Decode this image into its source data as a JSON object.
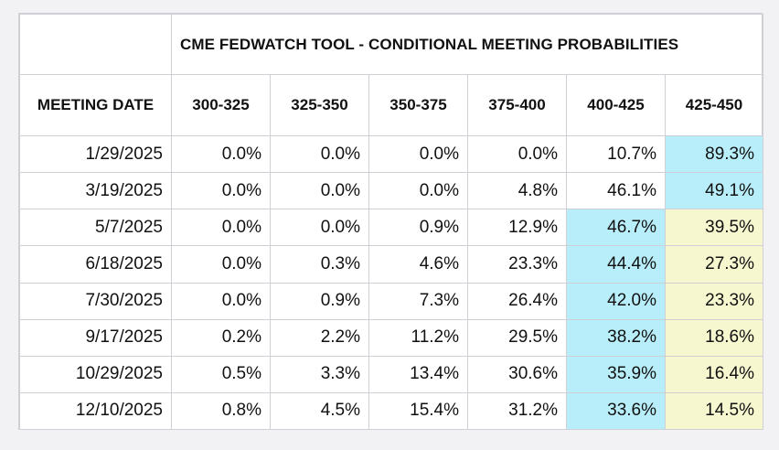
{
  "table": {
    "title": "CME FEDWATCH TOOL - CONDITIONAL MEETING PROBABILITIES",
    "meeting_date_header": "MEETING DATE",
    "rate_headers": [
      "300-325",
      "325-350",
      "350-375",
      "375-400",
      "400-425",
      "425-450"
    ],
    "rows": [
      {
        "date": "1/29/2025",
        "values": [
          "0.0%",
          "0.0%",
          "0.0%",
          "0.0%",
          "10.7%",
          "89.3%"
        ],
        "highlight": [
          "",
          "",
          "",
          "",
          "",
          "cyan"
        ]
      },
      {
        "date": "3/19/2025",
        "values": [
          "0.0%",
          "0.0%",
          "0.0%",
          "4.8%",
          "46.1%",
          "49.1%"
        ],
        "highlight": [
          "",
          "",
          "",
          "",
          "",
          "cyan"
        ]
      },
      {
        "date": "5/7/2025",
        "values": [
          "0.0%",
          "0.0%",
          "0.9%",
          "12.9%",
          "46.7%",
          "39.5%"
        ],
        "highlight": [
          "",
          "",
          "",
          "",
          "cyan",
          "yellow"
        ]
      },
      {
        "date": "6/18/2025",
        "values": [
          "0.0%",
          "0.3%",
          "4.6%",
          "23.3%",
          "44.4%",
          "27.3%"
        ],
        "highlight": [
          "",
          "",
          "",
          "",
          "cyan",
          "yellow"
        ]
      },
      {
        "date": "7/30/2025",
        "values": [
          "0.0%",
          "0.9%",
          "7.3%",
          "26.4%",
          "42.0%",
          "23.3%"
        ],
        "highlight": [
          "",
          "",
          "",
          "",
          "cyan",
          "yellow"
        ]
      },
      {
        "date": "9/17/2025",
        "values": [
          "0.2%",
          "2.2%",
          "11.2%",
          "29.5%",
          "38.2%",
          "18.6%"
        ],
        "highlight": [
          "",
          "",
          "",
          "",
          "cyan",
          "yellow"
        ]
      },
      {
        "date": "10/29/2025",
        "values": [
          "0.5%",
          "3.3%",
          "13.4%",
          "30.6%",
          "35.9%",
          "16.4%"
        ],
        "highlight": [
          "",
          "",
          "",
          "",
          "cyan",
          "yellow"
        ]
      },
      {
        "date": "12/10/2025",
        "values": [
          "0.8%",
          "4.5%",
          "15.4%",
          "31.2%",
          "33.6%",
          "14.5%"
        ],
        "highlight": [
          "",
          "",
          "",
          "",
          "cyan",
          "yellow"
        ]
      }
    ]
  },
  "colors": {
    "cyan_highlight": "#b8eef9",
    "yellow_highlight": "#f6f6cf",
    "border": "#cfd0d6"
  }
}
